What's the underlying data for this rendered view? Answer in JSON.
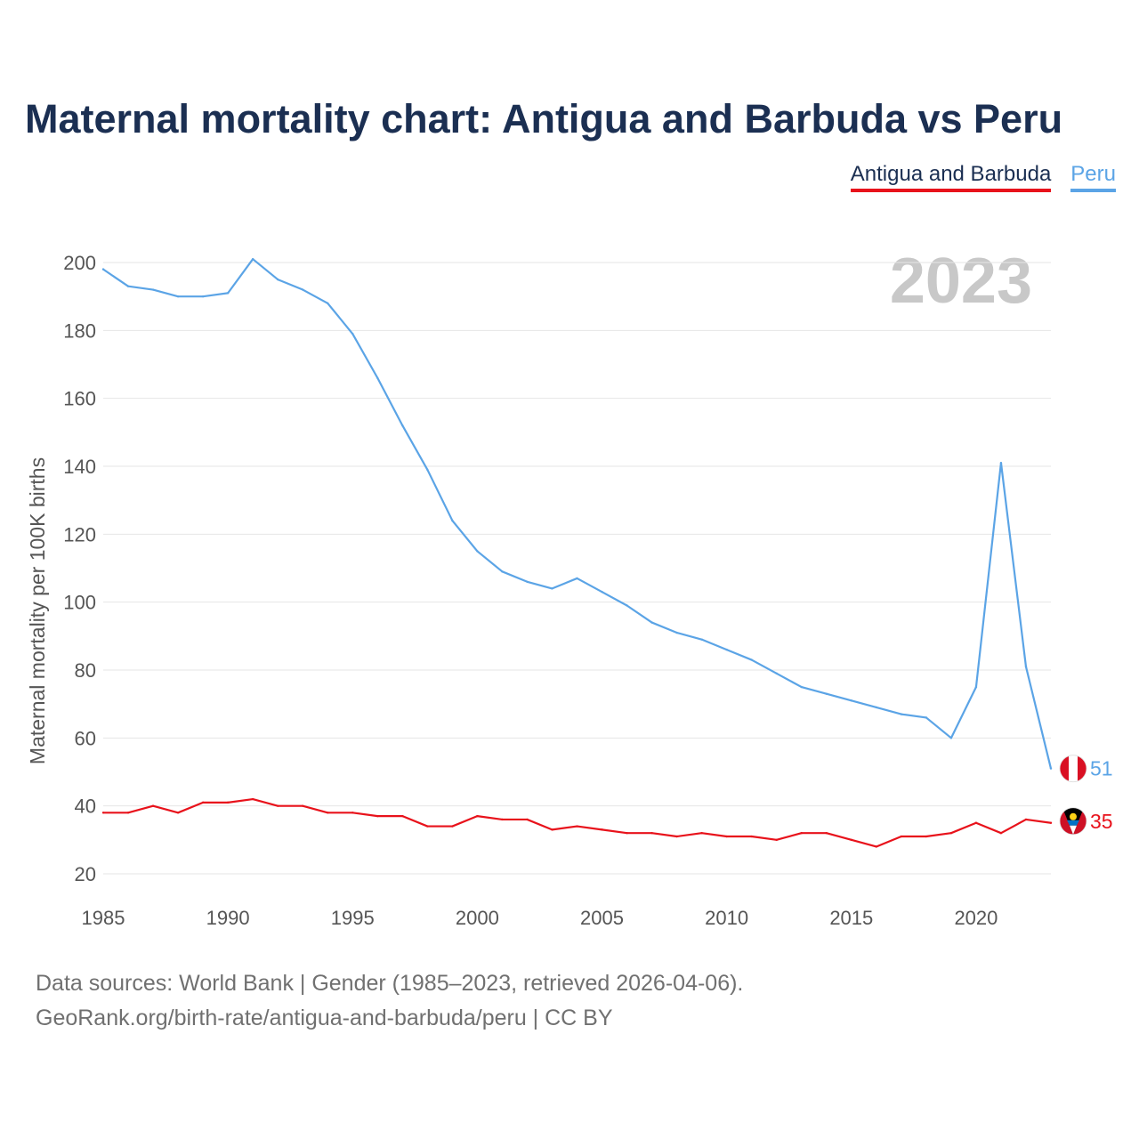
{
  "chart_data": {
    "type": "line",
    "title": "Maternal mortality chart: Antigua and Barbuda vs Peru",
    "ylabel": "Maternal mortality per 100K births",
    "xlabel": "",
    "x": [
      1985,
      1986,
      1987,
      1988,
      1989,
      1990,
      1991,
      1992,
      1993,
      1994,
      1995,
      1996,
      1997,
      1998,
      1999,
      2000,
      2001,
      2002,
      2003,
      2004,
      2005,
      2006,
      2007,
      2008,
      2009,
      2010,
      2011,
      2012,
      2013,
      2014,
      2015,
      2016,
      2017,
      2018,
      2019,
      2020,
      2021,
      2022,
      2023
    ],
    "xticks": [
      "1985",
      "1990",
      "1995",
      "2000",
      "2005",
      "2010",
      "2015",
      "2020"
    ],
    "xlim": [
      1985,
      2023
    ],
    "ylim": [
      20,
      210
    ],
    "yticks": [
      "20",
      "40",
      "60",
      "80",
      "100",
      "120",
      "140",
      "160",
      "180",
      "200"
    ],
    "grid": true,
    "year_watermark": "2023",
    "series": [
      {
        "name": "Antigua and Barbuda",
        "color": "#e8121b",
        "values": [
          38,
          38,
          40,
          38,
          41,
          41,
          42,
          40,
          40,
          38,
          38,
          37,
          37,
          34,
          34,
          37,
          36,
          36,
          33,
          34,
          33,
          32,
          32,
          31,
          32,
          31,
          31,
          30,
          32,
          32,
          30,
          28,
          31,
          31,
          32,
          35,
          32,
          36,
          35
        ],
        "end_label": "35",
        "flag_icon": "antigua-and-barbuda-flag-icon"
      },
      {
        "name": "Peru",
        "color": "#5ba4e6",
        "values": [
          198,
          193,
          192,
          190,
          190,
          191,
          201,
          195,
          192,
          188,
          179,
          166,
          152,
          139,
          124,
          115,
          109,
          106,
          104,
          107,
          103,
          99,
          94,
          91,
          89,
          86,
          83,
          79,
          75,
          73,
          71,
          69,
          67,
          66,
          60,
          75,
          141,
          81,
          51
        ],
        "end_label": "51",
        "flag_icon": "peru-flag-icon"
      }
    ]
  },
  "legend": {
    "antigua_label": "Antigua and Barbuda",
    "peru_label": "Peru"
  },
  "source": {
    "line1": "Data sources: World Bank | Gender (1985–2023, retrieved 2026-04-06).",
    "line2": "GeoRank.org/birth-rate/antigua-and-barbuda/peru | CC BY"
  }
}
